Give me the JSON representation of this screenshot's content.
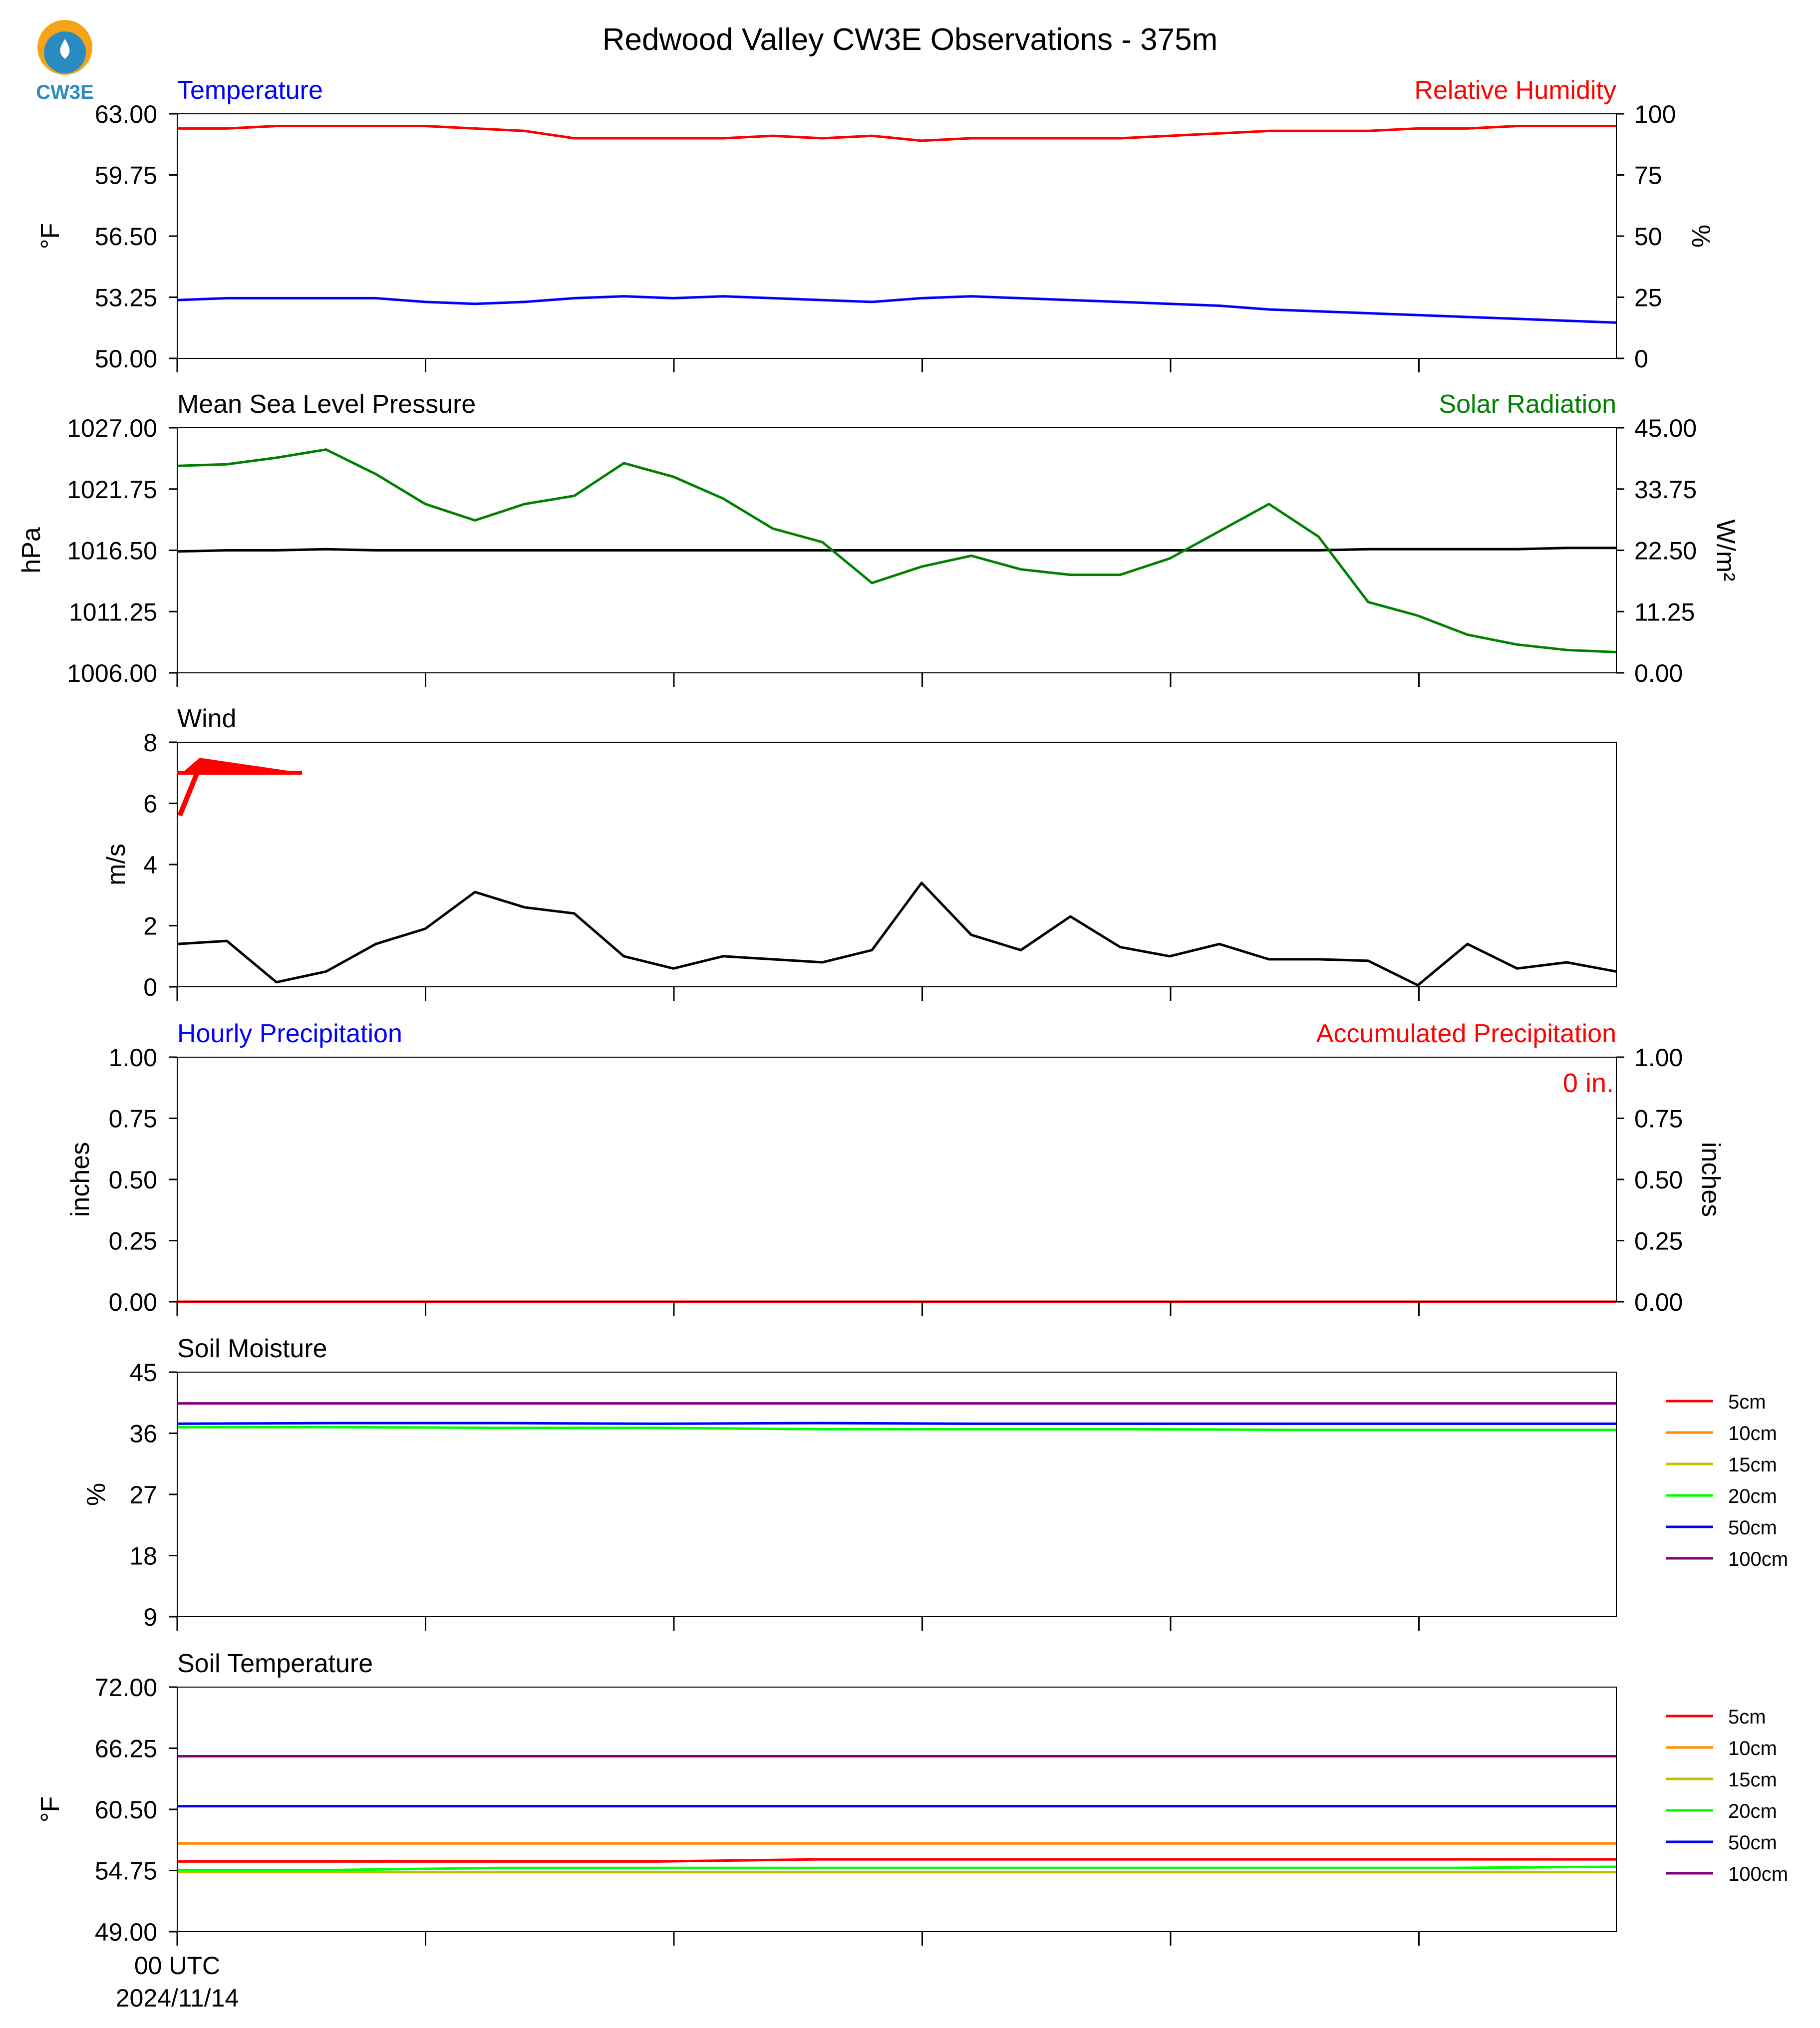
{
  "figure": {
    "title": "Redwood Valley CW3E Observations - 375m",
    "logo_text": "CW3E",
    "x_tick_label_time": "00 UTC",
    "x_tick_label_date": "2024/11/14"
  },
  "colors": {
    "blue": "#0000ff",
    "red": "#ff0000",
    "green": "#008000",
    "black": "#000000",
    "orange": "#ff8c00",
    "olive": "#bfbf00",
    "lime": "#00ff00",
    "purple": "#800080",
    "logo_orange": "#f5a41a",
    "logo_blue": "#2a8bc2"
  },
  "chart_data": [
    {
      "type": "line",
      "title_left": "Temperature",
      "title_right": "Relative Humidity",
      "ylabel_left": "°F",
      "ylabel_right": "%",
      "ylim_left": [
        50,
        63
      ],
      "ylim_right": [
        0,
        100
      ],
      "yticks_left": [
        "63.00",
        "59.75",
        "56.50",
        "53.25",
        "50.00"
      ],
      "yticks_right": [
        "100",
        "75",
        "50",
        "25",
        "0"
      ],
      "series": [
        {
          "name": "Relative Humidity",
          "axis": "right",
          "color": "red",
          "values": [
            94,
            94,
            95,
            95,
            95,
            95,
            94,
            93,
            90,
            90,
            90,
            90,
            91,
            90,
            91,
            89,
            90,
            90,
            90,
            90,
            91,
            92,
            93,
            93,
            93,
            94,
            94,
            95,
            95,
            95
          ]
        },
        {
          "name": "Temperature",
          "axis": "left",
          "color": "blue",
          "values": [
            53.1,
            53.2,
            53.2,
            53.2,
            53.2,
            53.0,
            52.9,
            53.0,
            53.2,
            53.3,
            53.2,
            53.3,
            53.2,
            53.1,
            53.0,
            53.2,
            53.3,
            53.2,
            53.1,
            53.0,
            52.9,
            52.8,
            52.6,
            52.5,
            52.4,
            52.3,
            52.2,
            52.1,
            52.0,
            51.9
          ]
        }
      ]
    },
    {
      "type": "line",
      "title_left": "Mean Sea Level Pressure",
      "title_right": "Solar Radiation",
      "ylabel_left": "hPa",
      "ylabel_right": "W/m²",
      "ylim_left": [
        1006,
        1027
      ],
      "ylim_right": [
        0,
        45
      ],
      "yticks_left": [
        "1027.00",
        "1021.75",
        "1016.50",
        "1011.25",
        "1006.00"
      ],
      "yticks_right": [
        "45.00",
        "33.75",
        "22.50",
        "11.25",
        "0.00"
      ],
      "series": [
        {
          "name": "Mean Sea Level Pressure",
          "axis": "left",
          "color": "black",
          "values": [
            1016.4,
            1016.5,
            1016.5,
            1016.6,
            1016.5,
            1016.5,
            1016.5,
            1016.5,
            1016.5,
            1016.5,
            1016.5,
            1016.5,
            1016.5,
            1016.5,
            1016.5,
            1016.5,
            1016.5,
            1016.5,
            1016.5,
            1016.5,
            1016.5,
            1016.5,
            1016.5,
            1016.5,
            1016.6,
            1016.6,
            1016.6,
            1016.6,
            1016.7,
            1016.7
          ]
        },
        {
          "name": "Solar Radiation",
          "axis": "right",
          "color": "green",
          "values": [
            38.0,
            38.3,
            39.5,
            41.0,
            36.5,
            31.0,
            28.0,
            31.0,
            32.5,
            38.5,
            36.0,
            32.0,
            26.5,
            24.0,
            16.5,
            19.5,
            21.5,
            19.0,
            18.0,
            18.0,
            21.0,
            26.0,
            31.0,
            25.0,
            13.0,
            10.5,
            7.0,
            5.2,
            4.2,
            3.8
          ]
        }
      ]
    },
    {
      "type": "line",
      "title_left": "Wind",
      "ylabel_left": "m/s",
      "ylim_left": [
        0,
        8
      ],
      "yticks_left": [
        "8",
        "6",
        "4",
        "2",
        "0"
      ],
      "series": [
        {
          "name": "Wind",
          "axis": "left",
          "color": "black",
          "values": [
            1.4,
            1.5,
            0.15,
            0.5,
            1.4,
            1.9,
            3.1,
            2.6,
            2.4,
            1.0,
            0.6,
            1.0,
            0.9,
            0.8,
            1.2,
            3.4,
            1.7,
            1.2,
            2.3,
            1.3,
            1.0,
            1.4,
            0.9,
            0.9,
            0.85,
            0.05,
            1.4,
            0.6,
            0.8,
            0.5
          ]
        }
      ],
      "wind_barb": {
        "color": "red",
        "direction": "westerly"
      }
    },
    {
      "type": "line",
      "title_left": "Hourly Precipitation",
      "title_right": "Accumulated Precipitation",
      "ylabel_left": "inches",
      "ylabel_right": "inches",
      "ylim_left": [
        0,
        1
      ],
      "ylim_right": [
        0,
        1
      ],
      "yticks_left": [
        "1.00",
        "0.75",
        "0.50",
        "0.25",
        "0.00"
      ],
      "yticks_right": [
        "1.00",
        "0.75",
        "0.50",
        "0.25",
        "0.00"
      ],
      "annotation": "0 in.",
      "series": [
        {
          "name": "Hourly Precipitation",
          "axis": "left",
          "color": "blue",
          "values": [
            0,
            0
          ]
        },
        {
          "name": "Accumulated Precipitation",
          "axis": "right",
          "color": "red",
          "values": [
            0,
            0
          ]
        }
      ]
    },
    {
      "type": "line",
      "title_left": "Soil Moisture",
      "ylabel_left": "%",
      "ylim_left": [
        9,
        45
      ],
      "yticks_left": [
        "45",
        "36",
        "27",
        "18",
        "9"
      ],
      "legend": [
        "5cm",
        "10cm",
        "15cm",
        "20cm",
        "50cm",
        "100cm"
      ],
      "legend_placement": "right",
      "series": [
        {
          "name": "20cm",
          "color": "lime",
          "values": [
            36.9,
            36.9,
            36.8,
            36.8,
            36.6,
            36.6,
            36.6,
            36.5,
            36.5,
            36.5
          ]
        },
        {
          "name": "50cm",
          "color": "blue",
          "values": [
            37.4,
            37.5,
            37.5,
            37.4,
            37.5,
            37.4,
            37.4,
            37.4,
            37.4,
            37.4
          ]
        },
        {
          "name": "100cm",
          "color": "purple",
          "values": [
            40.4,
            40.4,
            40.4,
            40.4,
            40.4,
            40.4,
            40.4,
            40.4,
            40.4,
            40.4
          ]
        }
      ]
    },
    {
      "type": "line",
      "title_left": "Soil Temperature",
      "ylabel_left": "°F",
      "ylim_left": [
        49,
        72
      ],
      "yticks_left": [
        "72.00",
        "66.25",
        "60.50",
        "54.75",
        "49.00"
      ],
      "legend": [
        "5cm",
        "10cm",
        "15cm",
        "20cm",
        "50cm",
        "100cm"
      ],
      "legend_placement": "right",
      "series": [
        {
          "name": "5cm",
          "color": "red",
          "values": [
            55.6,
            55.6,
            55.6,
            55.6,
            55.8,
            55.8,
            55.8,
            55.8,
            55.8,
            55.8
          ]
        },
        {
          "name": "10cm",
          "color": "orange",
          "values": [
            57.3,
            57.3,
            57.3,
            57.3,
            57.3,
            57.3,
            57.3,
            57.3,
            57.3,
            57.3
          ]
        },
        {
          "name": "15cm",
          "color": "olive",
          "values": [
            54.6,
            54.6,
            54.6,
            54.6,
            54.6,
            54.6,
            54.6,
            54.6,
            54.6,
            54.6
          ]
        },
        {
          "name": "20cm",
          "color": "lime",
          "values": [
            54.8,
            54.8,
            55.0,
            55.0,
            55.0,
            55.0,
            55.0,
            55.0,
            55.0,
            55.1
          ]
        },
        {
          "name": "50cm",
          "color": "blue",
          "values": [
            60.8,
            60.8,
            60.8,
            60.8,
            60.8,
            60.8,
            60.8,
            60.8,
            60.8,
            60.8
          ]
        },
        {
          "name": "100cm",
          "color": "purple",
          "values": [
            65.5,
            65.5,
            65.5,
            65.5,
            65.5,
            65.5,
            65.5,
            65.5,
            65.5,
            65.5
          ]
        }
      ]
    }
  ]
}
